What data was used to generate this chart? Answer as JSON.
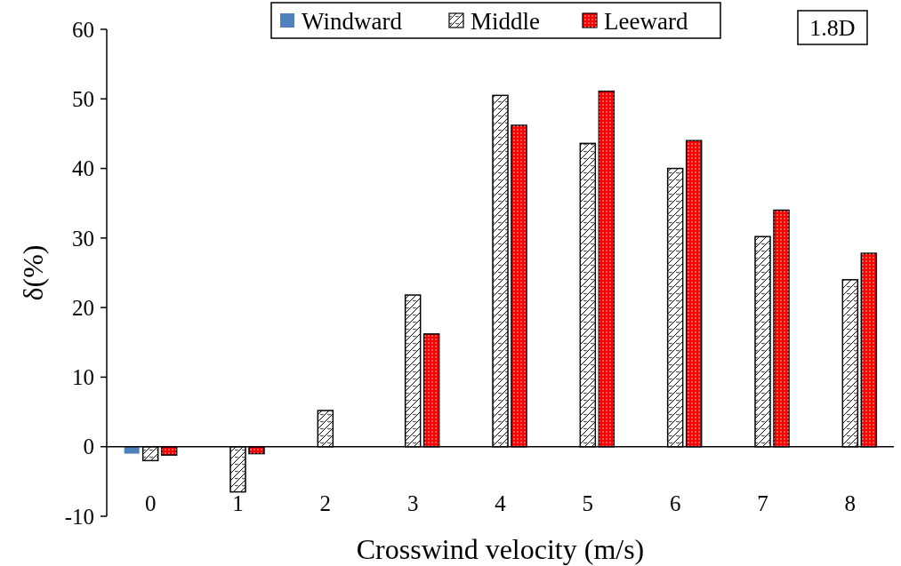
{
  "chart_data": {
    "type": "bar",
    "xlabel": "Crosswind velocity (m/s)",
    "ylabel": "δ(%)",
    "categories": [
      "0",
      "1",
      "2",
      "3",
      "4",
      "5",
      "6",
      "7",
      "8"
    ],
    "series": [
      {
        "name": "Windward",
        "color": "#4f81bd",
        "values": [
          -1,
          0,
          0,
          0,
          0,
          0,
          0,
          0,
          0
        ]
      },
      {
        "name": "Middle",
        "color": "#ffffff",
        "values": [
          -2,
          -6.5,
          5.2,
          21.8,
          50.5,
          43.6,
          40,
          30.2,
          24
        ]
      },
      {
        "name": "Leeward",
        "color": "#ff0000",
        "values": [
          -1.2,
          -1,
          0,
          16.2,
          46.2,
          51.1,
          44,
          34,
          27.8
        ]
      }
    ],
    "ylim": [
      -10,
      60
    ],
    "yticks": [
      -10,
      0,
      10,
      20,
      30,
      40,
      50,
      60
    ],
    "legend": "top",
    "annotations": [
      "1.8D"
    ]
  }
}
